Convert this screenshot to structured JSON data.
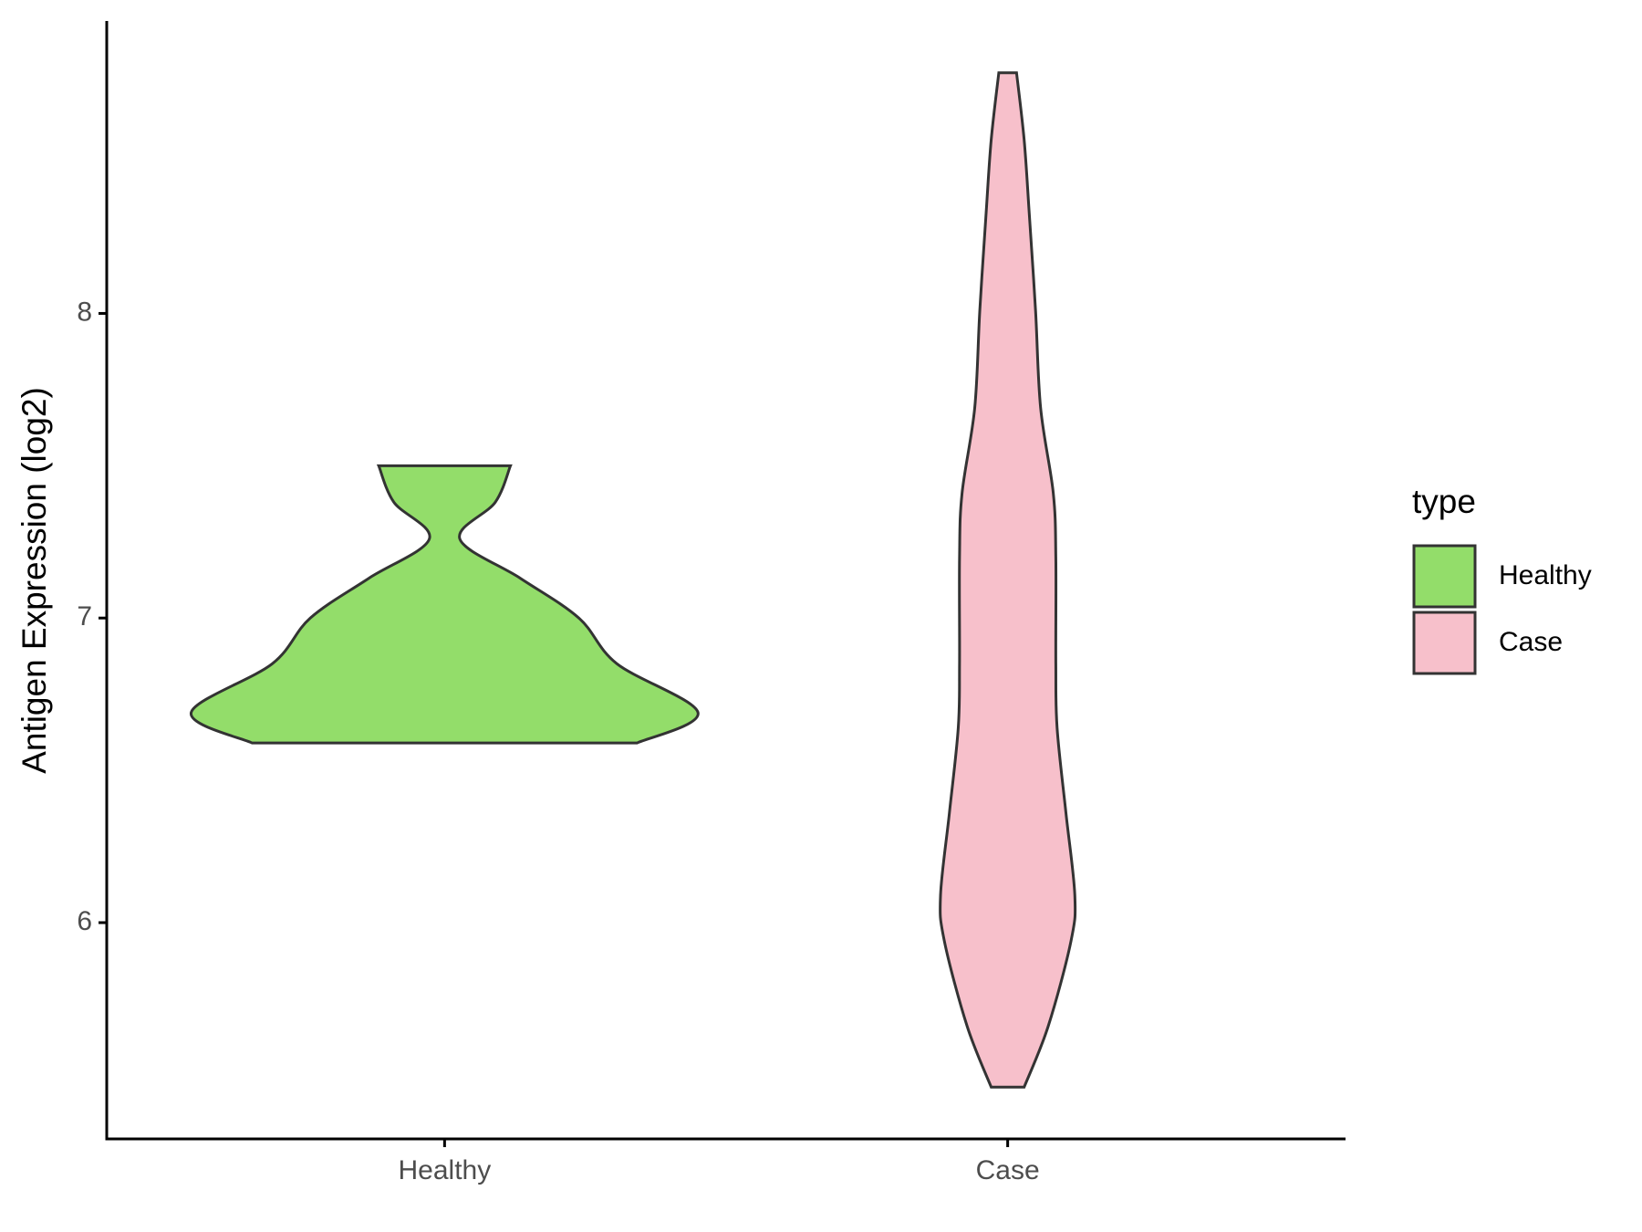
{
  "chart_data": {
    "type": "violin",
    "y_label": "Antigen Expression (log2)",
    "categories": [
      "Healthy",
      "Case"
    ],
    "ylim": [
      5.29,
      8.96
    ],
    "yticks": [
      6,
      7,
      8
    ],
    "legend_title": "type",
    "legend": "right",
    "series": [
      {
        "name": "Healthy",
        "color": "#93dd6a",
        "y": [
          6.59,
          6.69,
          6.85,
          7.0,
          7.13,
          7.26,
          7.38,
          7.5
        ],
        "width": [
          0.76,
          1.0,
          0.68,
          0.53,
          0.3,
          0.06,
          0.2,
          0.26
        ]
      },
      {
        "name": "Case",
        "color": "#f7c0cb",
        "y": [
          5.46,
          5.66,
          5.94,
          6.09,
          6.36,
          6.64,
          6.85,
          7.2,
          7.41,
          7.69,
          8.01,
          8.33,
          8.57,
          8.79
        ],
        "width": [
          0.065,
          0.16,
          0.25,
          0.265,
          0.23,
          0.195,
          0.19,
          0.19,
          0.18,
          0.13,
          0.11,
          0.085,
          0.065,
          0.035
        ]
      }
    ]
  }
}
